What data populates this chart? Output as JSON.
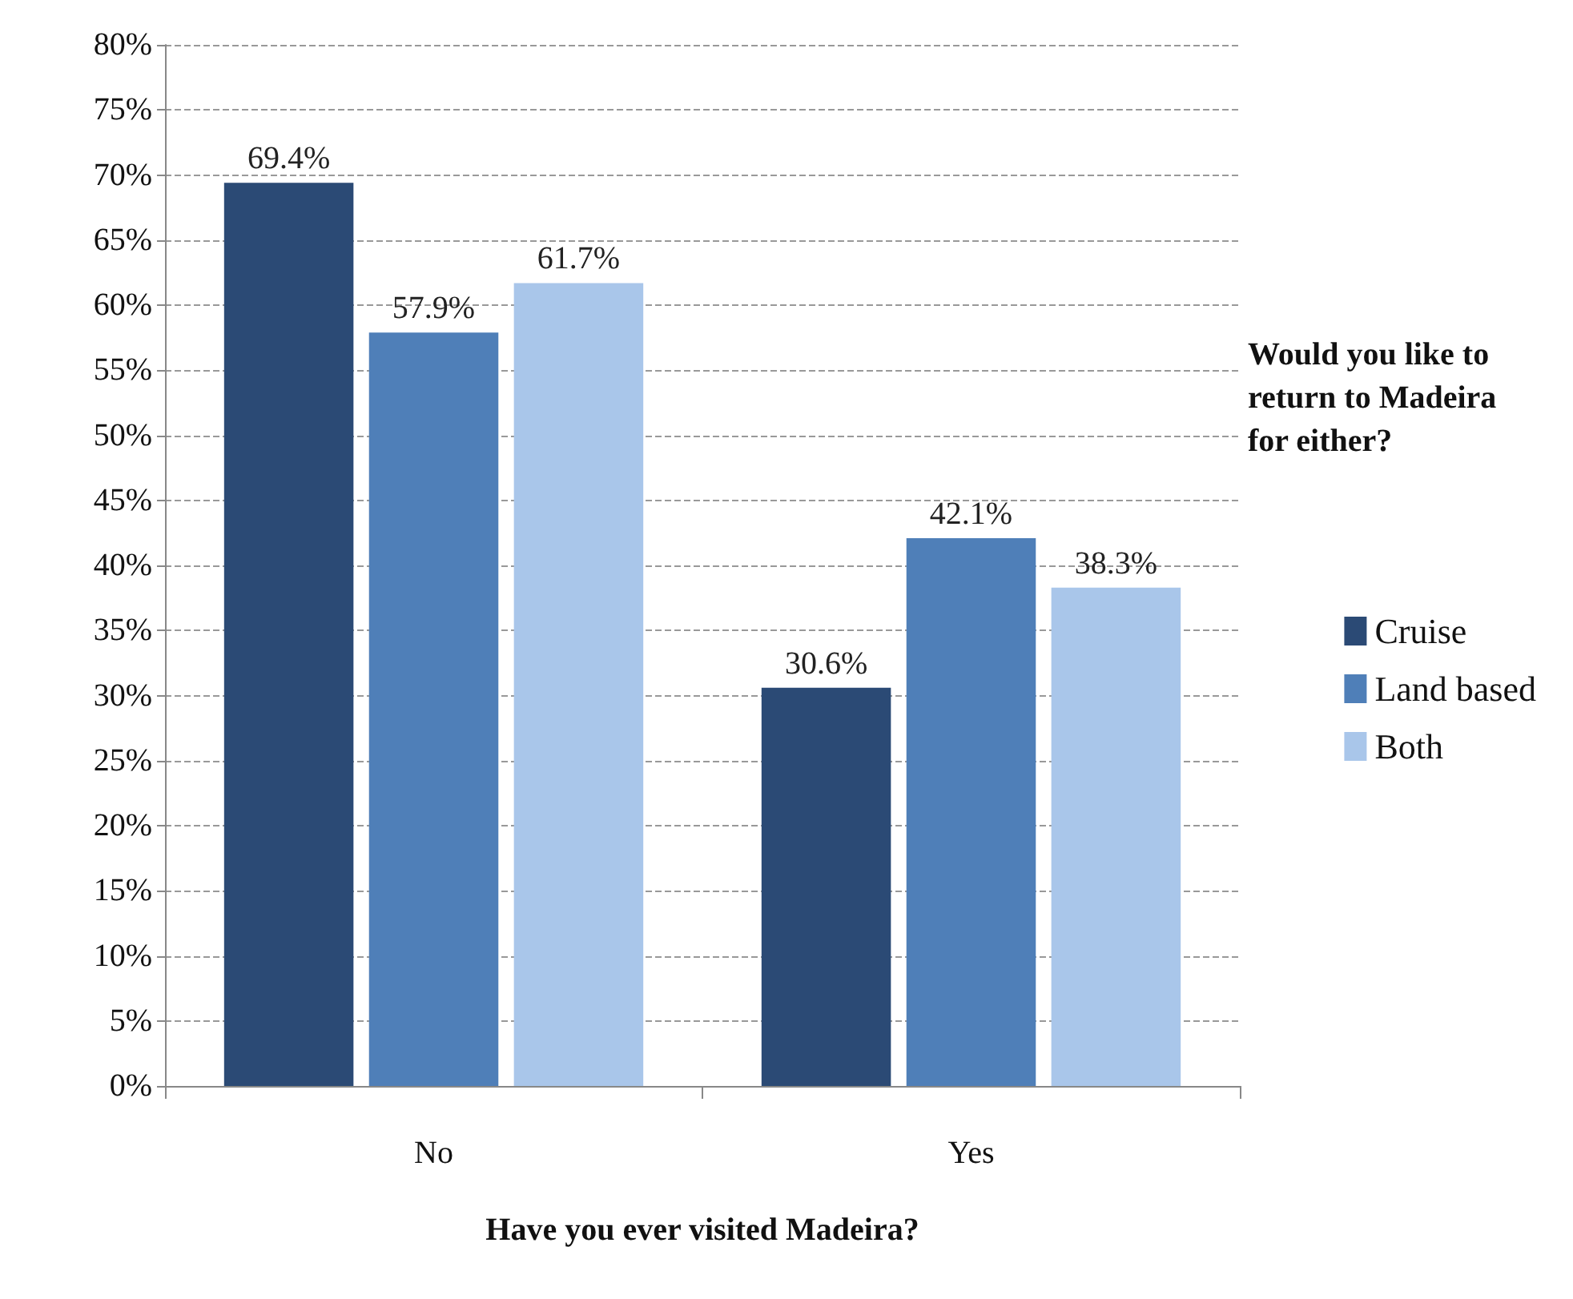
{
  "chart_data": {
    "type": "bar",
    "xlabel": "Have you ever visited Madeira?",
    "legend_title": "Would you like to return to Madeira for either?",
    "categories": [
      "No",
      "Yes"
    ],
    "series": [
      {
        "name": "Cruise",
        "color": "#2b4a75",
        "values": [
          69.4,
          30.6
        ],
        "value_labels": [
          "69.4%",
          "30.6%"
        ]
      },
      {
        "name": "Land based",
        "color": "#4f7fb8",
        "values": [
          57.9,
          42.1
        ],
        "value_labels": [
          "57.9%",
          "42.1%"
        ]
      },
      {
        "name": "Both",
        "color": "#a9c6ea",
        "values": [
          61.7,
          38.3
        ],
        "value_labels": [
          "61.7%",
          "38.3%"
        ]
      }
    ],
    "ylim": [
      0,
      80
    ],
    "yticks": [
      {
        "value": 0,
        "label": "0%"
      },
      {
        "value": 5,
        "label": "5%"
      },
      {
        "value": 10,
        "label": "10%"
      },
      {
        "value": 15,
        "label": "15%"
      },
      {
        "value": 20,
        "label": "20%"
      },
      {
        "value": 25,
        "label": "25%"
      },
      {
        "value": 30,
        "label": "30%"
      },
      {
        "value": 35,
        "label": "35%"
      },
      {
        "value": 40,
        "label": "40%"
      },
      {
        "value": 45,
        "label": "45%"
      },
      {
        "value": 50,
        "label": "50%"
      },
      {
        "value": 55,
        "label": "55%"
      },
      {
        "value": 60,
        "label": "60%"
      },
      {
        "value": 65,
        "label": "65%"
      },
      {
        "value": 70,
        "label": "70%"
      },
      {
        "value": 75,
        "label": "75%"
      },
      {
        "value": 80,
        "label": "80%"
      }
    ],
    "grid": "y",
    "legend": "right",
    "line_style": "dashed"
  }
}
